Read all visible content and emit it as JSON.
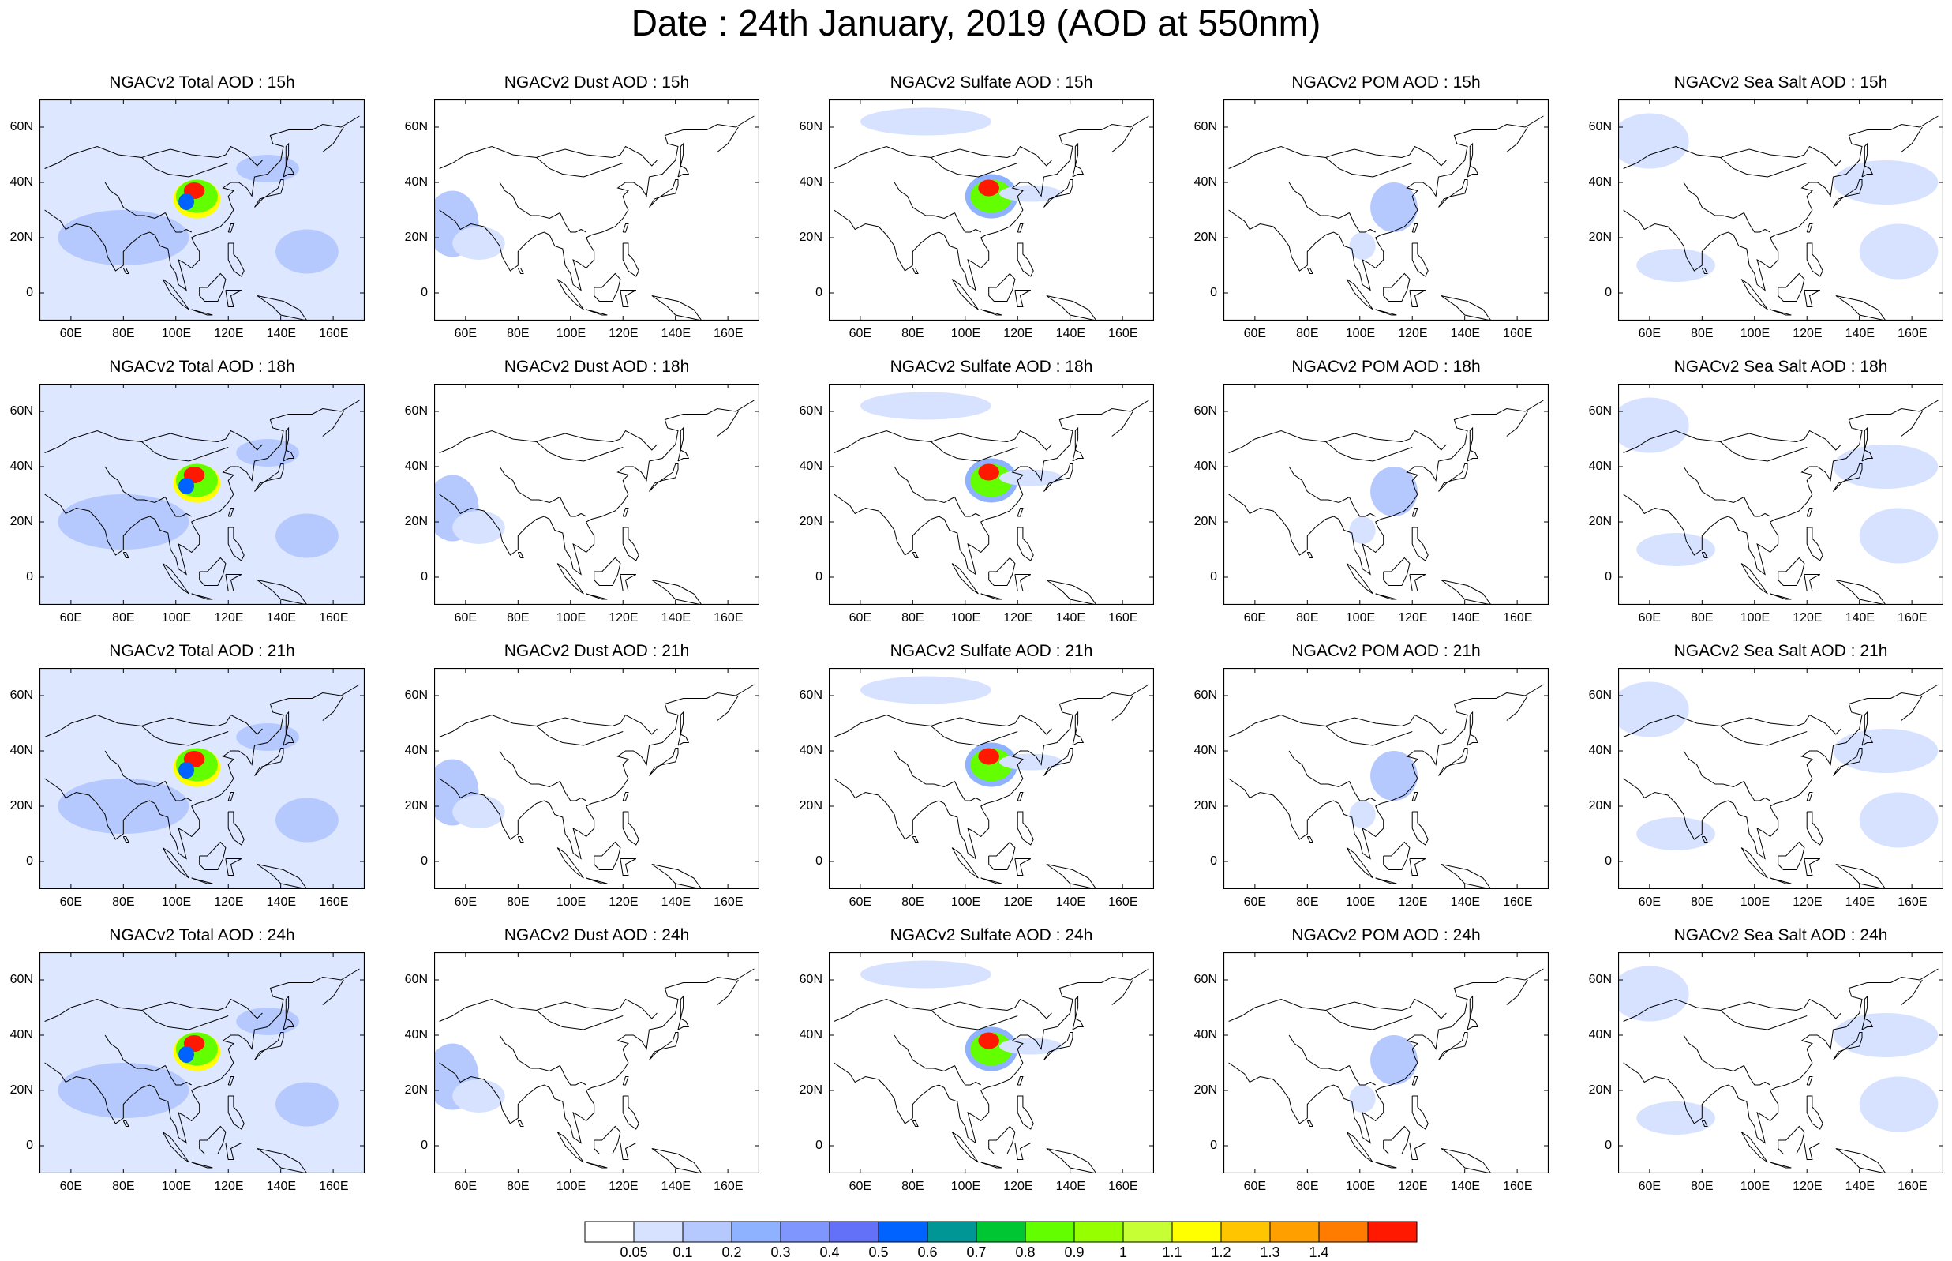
{
  "figure": {
    "title": "Date : 24th January, 2019 (AOD at 550nm)"
  },
  "map_extent": {
    "lon": [
      48,
      172
    ],
    "lat": [
      -10,
      70
    ]
  },
  "rows": [
    "15h",
    "18h",
    "21h",
    "24h"
  ],
  "columns": [
    {
      "key": "total",
      "title_prefix": "NGACv2 Total AOD : "
    },
    {
      "key": "dust",
      "title_prefix": "NGACv2 Dust AOD : "
    },
    {
      "key": "sulfate",
      "title_prefix": "NGACv2 Sulfate AOD : "
    },
    {
      "key": "pom",
      "title_prefix": "NGACv2 POM AOD : "
    },
    {
      "key": "seasalt",
      "title_prefix": "NGACv2 Sea Salt AOD : "
    }
  ],
  "panel_titles": [
    [
      "NGACv2 Total AOD : 15h",
      "NGACv2 Dust AOD : 15h",
      "NGACv2 Sulfate AOD : 15h",
      "NGACv2 POM AOD : 15h",
      "NGACv2 Sea Salt AOD : 15h"
    ],
    [
      "NGACv2 Total AOD : 18h",
      "NGACv2 Dust AOD : 18h",
      "NGACv2 Sulfate AOD : 18h",
      "NGACv2 POM AOD : 18h",
      "NGACv2 Sea Salt AOD : 18h"
    ],
    [
      "NGACv2 Total AOD : 21h",
      "NGACv2 Dust AOD : 21h",
      "NGACv2 Sulfate AOD : 21h",
      "NGACv2 POM AOD : 21h",
      "NGACv2 Sea Salt AOD : 21h"
    ],
    [
      "NGACv2 Total AOD : 24h",
      "NGACv2 Dust AOD : 24h",
      "NGACv2 Sulfate AOD : 24h",
      "NGACv2 POM AOD : 24h",
      "NGACv2 Sea Salt  AOD : 24h"
    ]
  ],
  "lon_ticks": [
    "60E",
    "80E",
    "100E",
    "120E",
    "140E",
    "160E"
  ],
  "lon_tick_values": [
    60,
    80,
    100,
    120,
    140,
    160
  ],
  "lat_ticks": [
    "60N",
    "40N",
    "20N",
    "0"
  ],
  "lat_tick_values": [
    60,
    40,
    20,
    0
  ],
  "colorbar": {
    "labels": [
      "0.05",
      "0.1",
      "0.2",
      "0.3",
      "0.4",
      "0.5",
      "0.6",
      "0.7",
      "0.8",
      "0.9",
      "1",
      "1.1",
      "1.2",
      "1.3",
      "1.4"
    ],
    "colors": [
      "#ffffff",
      "#d6e2ff",
      "#b5c9ff",
      "#8eb2ff",
      "#7f96ff",
      "#6370f8",
      "#0063ff",
      "#009696",
      "#00c633",
      "#63ff00",
      "#96ff00",
      "#c6ff33",
      "#ffff00",
      "#ffc600",
      "#ffa000",
      "#ff7c00",
      "#ff1900"
    ]
  },
  "map_layers": {
    "total": {
      "background": "#dde7ff",
      "blobs": [
        {
          "lon": 108,
          "lat": 34,
          "rx": 9,
          "ry": 7,
          "color": "#ffff00"
        },
        {
          "lon": 108,
          "lat": 35,
          "rx": 8,
          "ry": 6,
          "color": "#63ff00"
        },
        {
          "lon": 107,
          "lat": 37,
          "rx": 4,
          "ry": 3,
          "color": "#ff1900"
        },
        {
          "lon": 104,
          "lat": 33,
          "rx": 3,
          "ry": 3,
          "color": "#0063ff"
        },
        {
          "lon": 135,
          "lat": 45,
          "rx": 12,
          "ry": 5,
          "color": "#b5c9ff"
        },
        {
          "lon": 150,
          "lat": 15,
          "rx": 12,
          "ry": 8,
          "color": "#b5c9ff"
        },
        {
          "lon": 80,
          "lat": 20,
          "rx": 25,
          "ry": 10,
          "color": "#b5c9ff"
        }
      ]
    },
    "dust": {
      "background": "#ffffff",
      "blobs": [
        {
          "lon": 55,
          "lat": 25,
          "rx": 10,
          "ry": 12,
          "color": "#b5c9ff"
        },
        {
          "lon": 65,
          "lat": 18,
          "rx": 10,
          "ry": 6,
          "color": "#d6e2ff"
        }
      ]
    },
    "sulfate": {
      "background": "#ffffff",
      "blobs": [
        {
          "lon": 85,
          "lat": 62,
          "rx": 25,
          "ry": 5,
          "color": "#d6e2ff"
        },
        {
          "lon": 110,
          "lat": 35,
          "rx": 10,
          "ry": 8,
          "color": "#8eb2ff"
        },
        {
          "lon": 110,
          "lat": 35,
          "rx": 8,
          "ry": 6,
          "color": "#63ff00"
        },
        {
          "lon": 109,
          "lat": 38,
          "rx": 4,
          "ry": 3,
          "color": "#ff1900"
        },
        {
          "lon": 125,
          "lat": 36,
          "rx": 12,
          "ry": 3,
          "color": "#d6e2ff"
        }
      ]
    },
    "pom": {
      "background": "#ffffff",
      "blobs": [
        {
          "lon": 113,
          "lat": 31,
          "rx": 9,
          "ry": 9,
          "color": "#b5c9ff"
        },
        {
          "lon": 101,
          "lat": 17,
          "rx": 5,
          "ry": 5,
          "color": "#d6e2ff"
        }
      ]
    },
    "seasalt": {
      "background": "#ffffff",
      "blobs": [
        {
          "lon": 150,
          "lat": 40,
          "rx": 20,
          "ry": 8,
          "color": "#d6e2ff"
        },
        {
          "lon": 155,
          "lat": 15,
          "rx": 15,
          "ry": 10,
          "color": "#d6e2ff"
        },
        {
          "lon": 60,
          "lat": 55,
          "rx": 15,
          "ry": 10,
          "color": "#d6e2ff"
        },
        {
          "lon": 70,
          "lat": 10,
          "rx": 15,
          "ry": 6,
          "color": "#d6e2ff"
        }
      ]
    }
  }
}
